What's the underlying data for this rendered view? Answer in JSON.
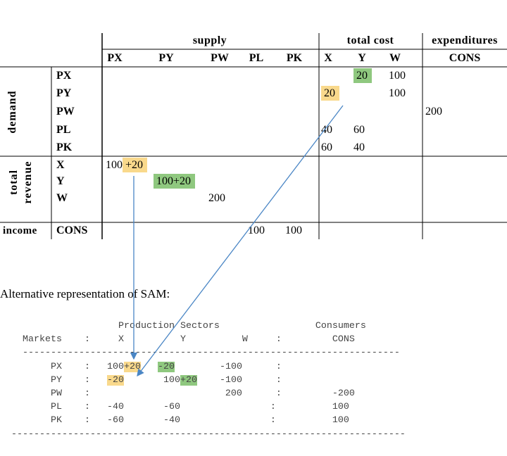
{
  "sam": {
    "column_groups": [
      {
        "label": "supply",
        "columns": [
          "PX",
          "PY",
          "PW",
          "PL",
          "PK"
        ]
      },
      {
        "label": "total cost",
        "columns": [
          "X",
          "Y",
          "W"
        ]
      },
      {
        "label": "expenditures",
        "columns": [
          "CONS"
        ]
      }
    ],
    "row_groups": [
      {
        "label": [
          "demand"
        ],
        "rows": [
          {
            "label": "PX",
            "cells": [
              null,
              null,
              null,
              null,
              null,
              null,
              [
                {
                  "text": "20",
                  "highlight": "green"
                }
              ],
              [
                {
                  "text": "100"
                }
              ],
              null
            ]
          },
          {
            "label": "PY",
            "cells": [
              null,
              null,
              null,
              null,
              null,
              [
                {
                  "text": "20",
                  "highlight": "yellow"
                }
              ],
              null,
              [
                {
                  "text": "100"
                }
              ],
              null
            ]
          },
          {
            "label": "PW",
            "cells": [
              null,
              null,
              null,
              null,
              null,
              null,
              null,
              null,
              [
                {
                  "text": "200"
                }
              ]
            ]
          },
          {
            "label": "PL",
            "cells": [
              null,
              null,
              null,
              null,
              null,
              [
                {
                  "text": "40"
                }
              ],
              [
                {
                  "text": "60"
                }
              ],
              null,
              null
            ]
          },
          {
            "label": "PK",
            "cells": [
              null,
              null,
              null,
              null,
              null,
              [
                {
                  "text": "60"
                }
              ],
              [
                {
                  "text": "40"
                }
              ],
              null,
              null
            ]
          }
        ]
      },
      {
        "label": [
          "total",
          "revenue"
        ],
        "rows": [
          {
            "label": "X",
            "cells": [
              [
                {
                  "text": "100"
                },
                {
                  "text": "+20",
                  "highlight": "yellow"
                }
              ],
              null,
              null,
              null,
              null,
              null,
              null,
              null,
              null
            ]
          },
          {
            "label": "Y",
            "cells": [
              null,
              [
                {
                  "text": "100+20",
                  "highlight": "green"
                }
              ],
              null,
              null,
              null,
              null,
              null,
              null,
              null
            ]
          },
          {
            "label": "W",
            "cells": [
              null,
              null,
              [
                {
                  "text": "200"
                }
              ],
              null,
              null,
              null,
              null,
              null,
              null
            ]
          }
        ]
      },
      {
        "label": [
          "income"
        ],
        "rows": [
          {
            "label": "CONS",
            "cells": [
              null,
              null,
              null,
              [
                {
                  "text": "100"
                }
              ],
              [
                {
                  "text": "100"
                }
              ],
              null,
              null,
              null,
              null
            ]
          }
        ]
      }
    ]
  },
  "alt": {
    "caption": "Alternative representation of SAM:",
    "lines": [
      [
        {
          "text": "                     Production Sectors                 Consumers"
        }
      ],
      [
        {
          "text": "    Markets    :     X          Y          W     :         CONS"
        }
      ],
      [
        {
          "text": "    -------------------------------------------------------------------"
        }
      ],
      [
        {
          "text": "         PX    :   100"
        },
        {
          "text": "+20",
          "highlight": "yellow"
        },
        {
          "text": "   "
        },
        {
          "text": "-20",
          "highlight": "green"
        },
        {
          "text": "        -100      :"
        }
      ],
      [
        {
          "text": "         PY    :   "
        },
        {
          "text": "-20",
          "highlight": "yellow"
        },
        {
          "text": "       100"
        },
        {
          "text": "+20",
          "highlight": "green"
        },
        {
          "text": "    -100      :"
        }
      ],
      [
        {
          "text": "         PW    :                        200      :         -200"
        }
      ],
      [
        {
          "text": "         PL    :   -40       -60                :          100"
        }
      ],
      [
        {
          "text": "         PK    :   -60       -40                :          100"
        }
      ],
      [
        {
          "text": "  ----------------------------------------------------------------------"
        }
      ]
    ]
  }
}
